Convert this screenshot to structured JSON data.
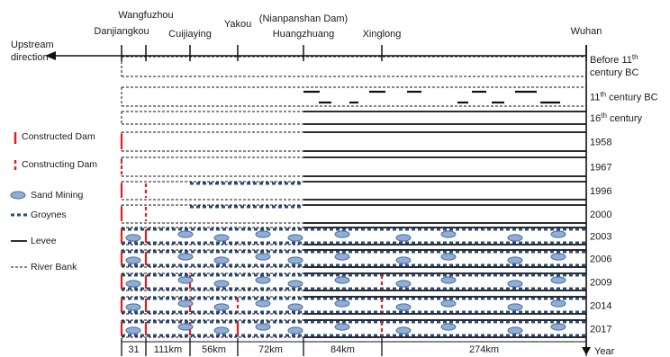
{
  "stations": [
    "Danjiangkou",
    "Wangfuzhou",
    "Cuijiaying",
    "Yakou",
    "Huangzhuang",
    "Xinglong",
    "Wuhan"
  ],
  "dam_note": "(Nianpanshan Dam)",
  "direction_label": [
    "Upstream",
    "direction"
  ],
  "segments": [
    "31",
    "111km",
    "56km",
    "72km",
    "84km",
    "274km"
  ],
  "axis_label": "Year",
  "periods": [
    {
      "name": "before11",
      "label": [
        {
          "text": "Before 11"
        },
        {
          "text": "th",
          "sup": true
        }
      ],
      "label2": "century BC"
    },
    {
      "name": "11th-bc",
      "label": [
        {
          "text": "11"
        },
        {
          "text": "th",
          "sup": true
        },
        {
          "text": " century BC"
        }
      ]
    },
    {
      "name": "16th",
      "label": [
        {
          "text": "16"
        },
        {
          "text": "th",
          "sup": true
        },
        {
          "text": " century"
        }
      ]
    },
    {
      "name": "1958",
      "label": [
        {
          "text": "1958"
        }
      ]
    },
    {
      "name": "1967",
      "label": [
        {
          "text": "1967"
        }
      ]
    },
    {
      "name": "1996",
      "label": [
        {
          "text": "1996"
        }
      ]
    },
    {
      "name": "2000",
      "label": [
        {
          "text": "2000"
        }
      ]
    },
    {
      "name": "2003",
      "label": [
        {
          "text": "2003"
        }
      ]
    },
    {
      "name": "2006",
      "label": [
        {
          "text": "2006"
        }
      ]
    },
    {
      "name": "2009",
      "label": [
        {
          "text": "2009"
        }
      ]
    },
    {
      "name": "2014",
      "label": [
        {
          "text": "2014"
        }
      ]
    },
    {
      "name": "2017",
      "label": [
        {
          "text": "2017"
        }
      ]
    }
  ],
  "legend": [
    {
      "type": "constructed-dam",
      "label": "Constructed Dam"
    },
    {
      "type": "constructing-dam",
      "label": "Constructing Dam"
    },
    {
      "type": "sand-mining",
      "label": "Sand Mining"
    },
    {
      "type": "groynes",
      "label": "Groynes"
    },
    {
      "type": "levee",
      "label": "Levee"
    },
    {
      "type": "river-bank",
      "label": "River Bank"
    }
  ],
  "colors": {
    "dam": "#e02020",
    "sand": "#8faed6",
    "sand_stroke": "#4a6a9a",
    "groyne": "#2c4c78",
    "line": "#111111"
  }
}
